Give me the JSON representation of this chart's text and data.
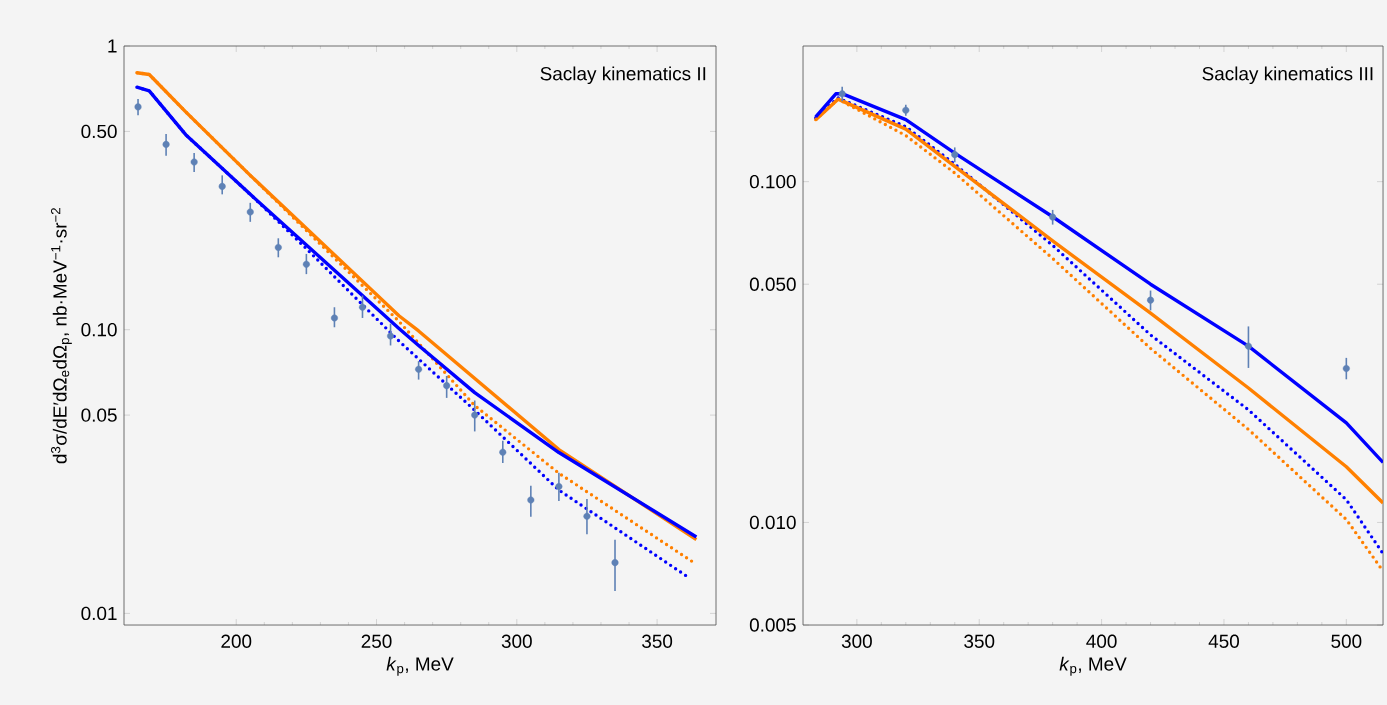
{
  "chart_data": [
    {
      "type": "line",
      "marker": "circle",
      "title": "Saclay kinematics II",
      "xlabel": "*k*$_{p}$, MeV",
      "ylabel": "d$^{3}$σ/dE′dΩ$_{e}$dΩ$_{p}$, nb·MeV$^{−1}$·sr$^{−2}$",
      "log": true,
      "xlim": [
        160,
        371
      ],
      "ylim": [
        0.0091,
        1
      ],
      "xticks": [
        200,
        250,
        300,
        350
      ],
      "yticks": [
        {
          "value": 0.01,
          "label": "0.01"
        },
        {
          "value": 0.05,
          "label": "0.05"
        },
        {
          "value": 0.1,
          "label": "0.10"
        },
        {
          "value": 0.5,
          "label": "0.50"
        },
        1
      ],
      "series": [
        {
          "line_style": "dotted",
          "marker": "none",
          "color": "#ff8000",
          "x": [
            164.6,
            169,
            182,
            205,
            258,
            285,
            315,
            364
          ],
          "values": [
            0.805,
            0.794,
            0.586,
            0.35,
            0.107,
            0.054,
            0.0312,
            0.0149
          ]
        },
        {
          "line_style": "dotted",
          "marker": "none",
          "color": "#0000ff",
          "x": [
            164.6,
            169,
            182,
            205,
            225,
            258,
            285,
            315,
            360.7
          ],
          "values": [
            0.716,
            0.695,
            0.487,
            0.3,
            0.193,
            0.0912,
            0.052,
            0.0272,
            0.0135
          ]
        },
        {
          "line_style": "solid",
          "marker": "none",
          "color": "#ff8000",
          "x": [
            164.6,
            169,
            182,
            205,
            258,
            265,
            315,
            364
          ],
          "values": [
            0.805,
            0.794,
            0.586,
            0.35,
            0.112,
            0.099,
            0.0378,
            0.0182
          ]
        },
        {
          "line_style": "solid",
          "marker": "none",
          "color": "#0000ff",
          "x": [
            164.6,
            169,
            182,
            205,
            258,
            265,
            285,
            315,
            364
          ],
          "values": [
            0.716,
            0.695,
            0.487,
            0.3,
            0.101,
            0.088,
            0.06,
            0.0369,
            0.0186
          ]
        },
        {
          "type": "scatter",
          "color": "#5e81b5",
          "x": [
            165,
            175,
            185,
            195,
            205,
            215,
            225,
            235,
            245,
            255,
            265,
            275,
            285,
            295,
            305,
            315,
            325,
            335
          ],
          "values": [
            0.61,
            0.45,
            0.39,
            0.32,
            0.26,
            0.195,
            0.17,
            0.11,
            0.12,
            0.095,
            0.0725,
            0.0635,
            0.05,
            0.037,
            0.0251,
            0.028,
            0.022,
            0.0151
          ],
          "errors": [
            [
              0.57,
              0.65
            ],
            [
              0.41,
              0.49
            ],
            [
              0.36,
              0.42
            ],
            [
              0.3,
              0.35
            ],
            [
              0.24,
              0.28
            ],
            [
              0.18,
              0.21
            ],
            [
              0.157,
              0.185
            ],
            [
              0.102,
              0.12
            ],
            [
              0.11,
              0.132
            ],
            [
              0.088,
              0.105
            ],
            [
              0.0667,
              0.0775
            ],
            [
              0.0575,
              0.0687
            ],
            [
              0.0438,
              0.0563
            ],
            [
              0.0339,
              0.0406
            ],
            [
              0.0219,
              0.0282
            ],
            [
              0.0249,
              0.0313
            ],
            [
              0.019,
              0.0253
            ],
            [
              0.012,
              0.0182
            ]
          ]
        }
      ]
    },
    {
      "type": "line",
      "marker": "circle",
      "title": "Saclay kinematics III",
      "xlabel": "*k*$_{p}$, MeV",
      "log": true,
      "xlim": [
        278,
        515
      ],
      "ylim": [
        0.005,
        0.25
      ],
      "xticks": [
        300,
        350,
        400,
        450,
        500
      ],
      "yticks": [
        {
          "value": 0.005,
          "label": "0.005"
        },
        {
          "value": 0.01,
          "label": "0.010"
        },
        {
          "value": 0.05,
          "label": "0.050"
        },
        {
          "value": 0.1,
          "label": "0.100"
        }
      ],
      "series": [
        {
          "line_style": "dotted",
          "marker": "none",
          "color": "#ff8000",
          "x": [
            283.2,
            292.3,
            320,
            340,
            380,
            420,
            460,
            500,
            515
          ],
          "values": [
            0.152,
            0.1746,
            0.1365,
            0.106,
            0.0595,
            0.0324,
            0.01875,
            0.0102,
            0.0072
          ]
        },
        {
          "line_style": "dotted",
          "marker": "none",
          "color": "#0000ff",
          "x": [
            283.2,
            292.3,
            320,
            340,
            380,
            420,
            460,
            500,
            515
          ],
          "values": [
            0.154,
            0.176,
            0.145,
            0.1125,
            0.065,
            0.0355,
            0.0214,
            0.01166,
            0.0081
          ]
        },
        {
          "line_style": "solid",
          "marker": "none",
          "color": "#ff8000",
          "x": [
            283.2,
            292.3,
            320,
            340,
            380,
            420,
            460,
            500,
            515
          ],
          "values": [
            0.152,
            0.1746,
            0.1426,
            0.1109,
            0.067,
            0.0411,
            0.0248,
            0.01457,
            0.0114
          ]
        },
        {
          "line_style": "solid",
          "marker": "none",
          "color": "#0000ff",
          "x": [
            283.2,
            291.4,
            294.2,
            320,
            340,
            380,
            420,
            460,
            500,
            515
          ],
          "values": [
            0.155,
            0.181,
            0.181,
            0.152,
            0.1212,
            0.0789,
            0.05,
            0.0329,
            0.0196,
            0.015
          ]
        },
        {
          "type": "scatter",
          "color": "#5e81b5",
          "x": [
            294,
            320,
            340,
            380,
            420,
            460,
            500
          ],
          "values": [
            0.181,
            0.162,
            0.12,
            0.0787,
            0.0449,
            0.0329,
            0.0283
          ],
          "errors": [
            [
              0.172,
              0.19
            ],
            [
              0.156,
              0.168
            ],
            [
              0.114,
              0.126
            ],
            [
              0.0748,
              0.0826
            ],
            [
              0.0419,
              0.0479
            ],
            [
              0.0284,
              0.0376
            ],
            [
              0.0263,
              0.0304
            ]
          ]
        }
      ]
    }
  ]
}
